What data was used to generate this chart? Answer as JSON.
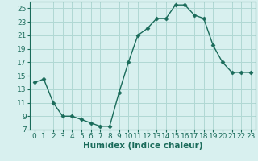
{
  "x": [
    0,
    1,
    2,
    3,
    4,
    5,
    6,
    7,
    8,
    9,
    10,
    11,
    12,
    13,
    14,
    15,
    16,
    17,
    18,
    19,
    20,
    21,
    22,
    23
  ],
  "y": [
    14,
    14.5,
    11,
    9,
    9,
    8.5,
    8,
    7.5,
    7.5,
    12.5,
    17,
    21,
    22,
    23.5,
    23.5,
    25.5,
    25.5,
    24,
    23.5,
    19.5,
    17,
    15.5,
    15.5,
    15.5
  ],
  "line_color": "#1a6b5a",
  "marker": "D",
  "marker_size": 2.5,
  "bg_color": "#d8f0ef",
  "grid_color": "#b0d8d4",
  "xlabel": "Humidex (Indice chaleur)",
  "xlim": [
    -0.5,
    23.5
  ],
  "ylim": [
    7,
    26
  ],
  "yticks": [
    7,
    9,
    11,
    13,
    15,
    17,
    19,
    21,
    23,
    25
  ],
  "xticks": [
    0,
    1,
    2,
    3,
    4,
    5,
    6,
    7,
    8,
    9,
    10,
    11,
    12,
    13,
    14,
    15,
    16,
    17,
    18,
    19,
    20,
    21,
    22,
    23
  ],
  "font_size": 6.5,
  "label_font_size": 7.5,
  "linewidth": 1.0
}
